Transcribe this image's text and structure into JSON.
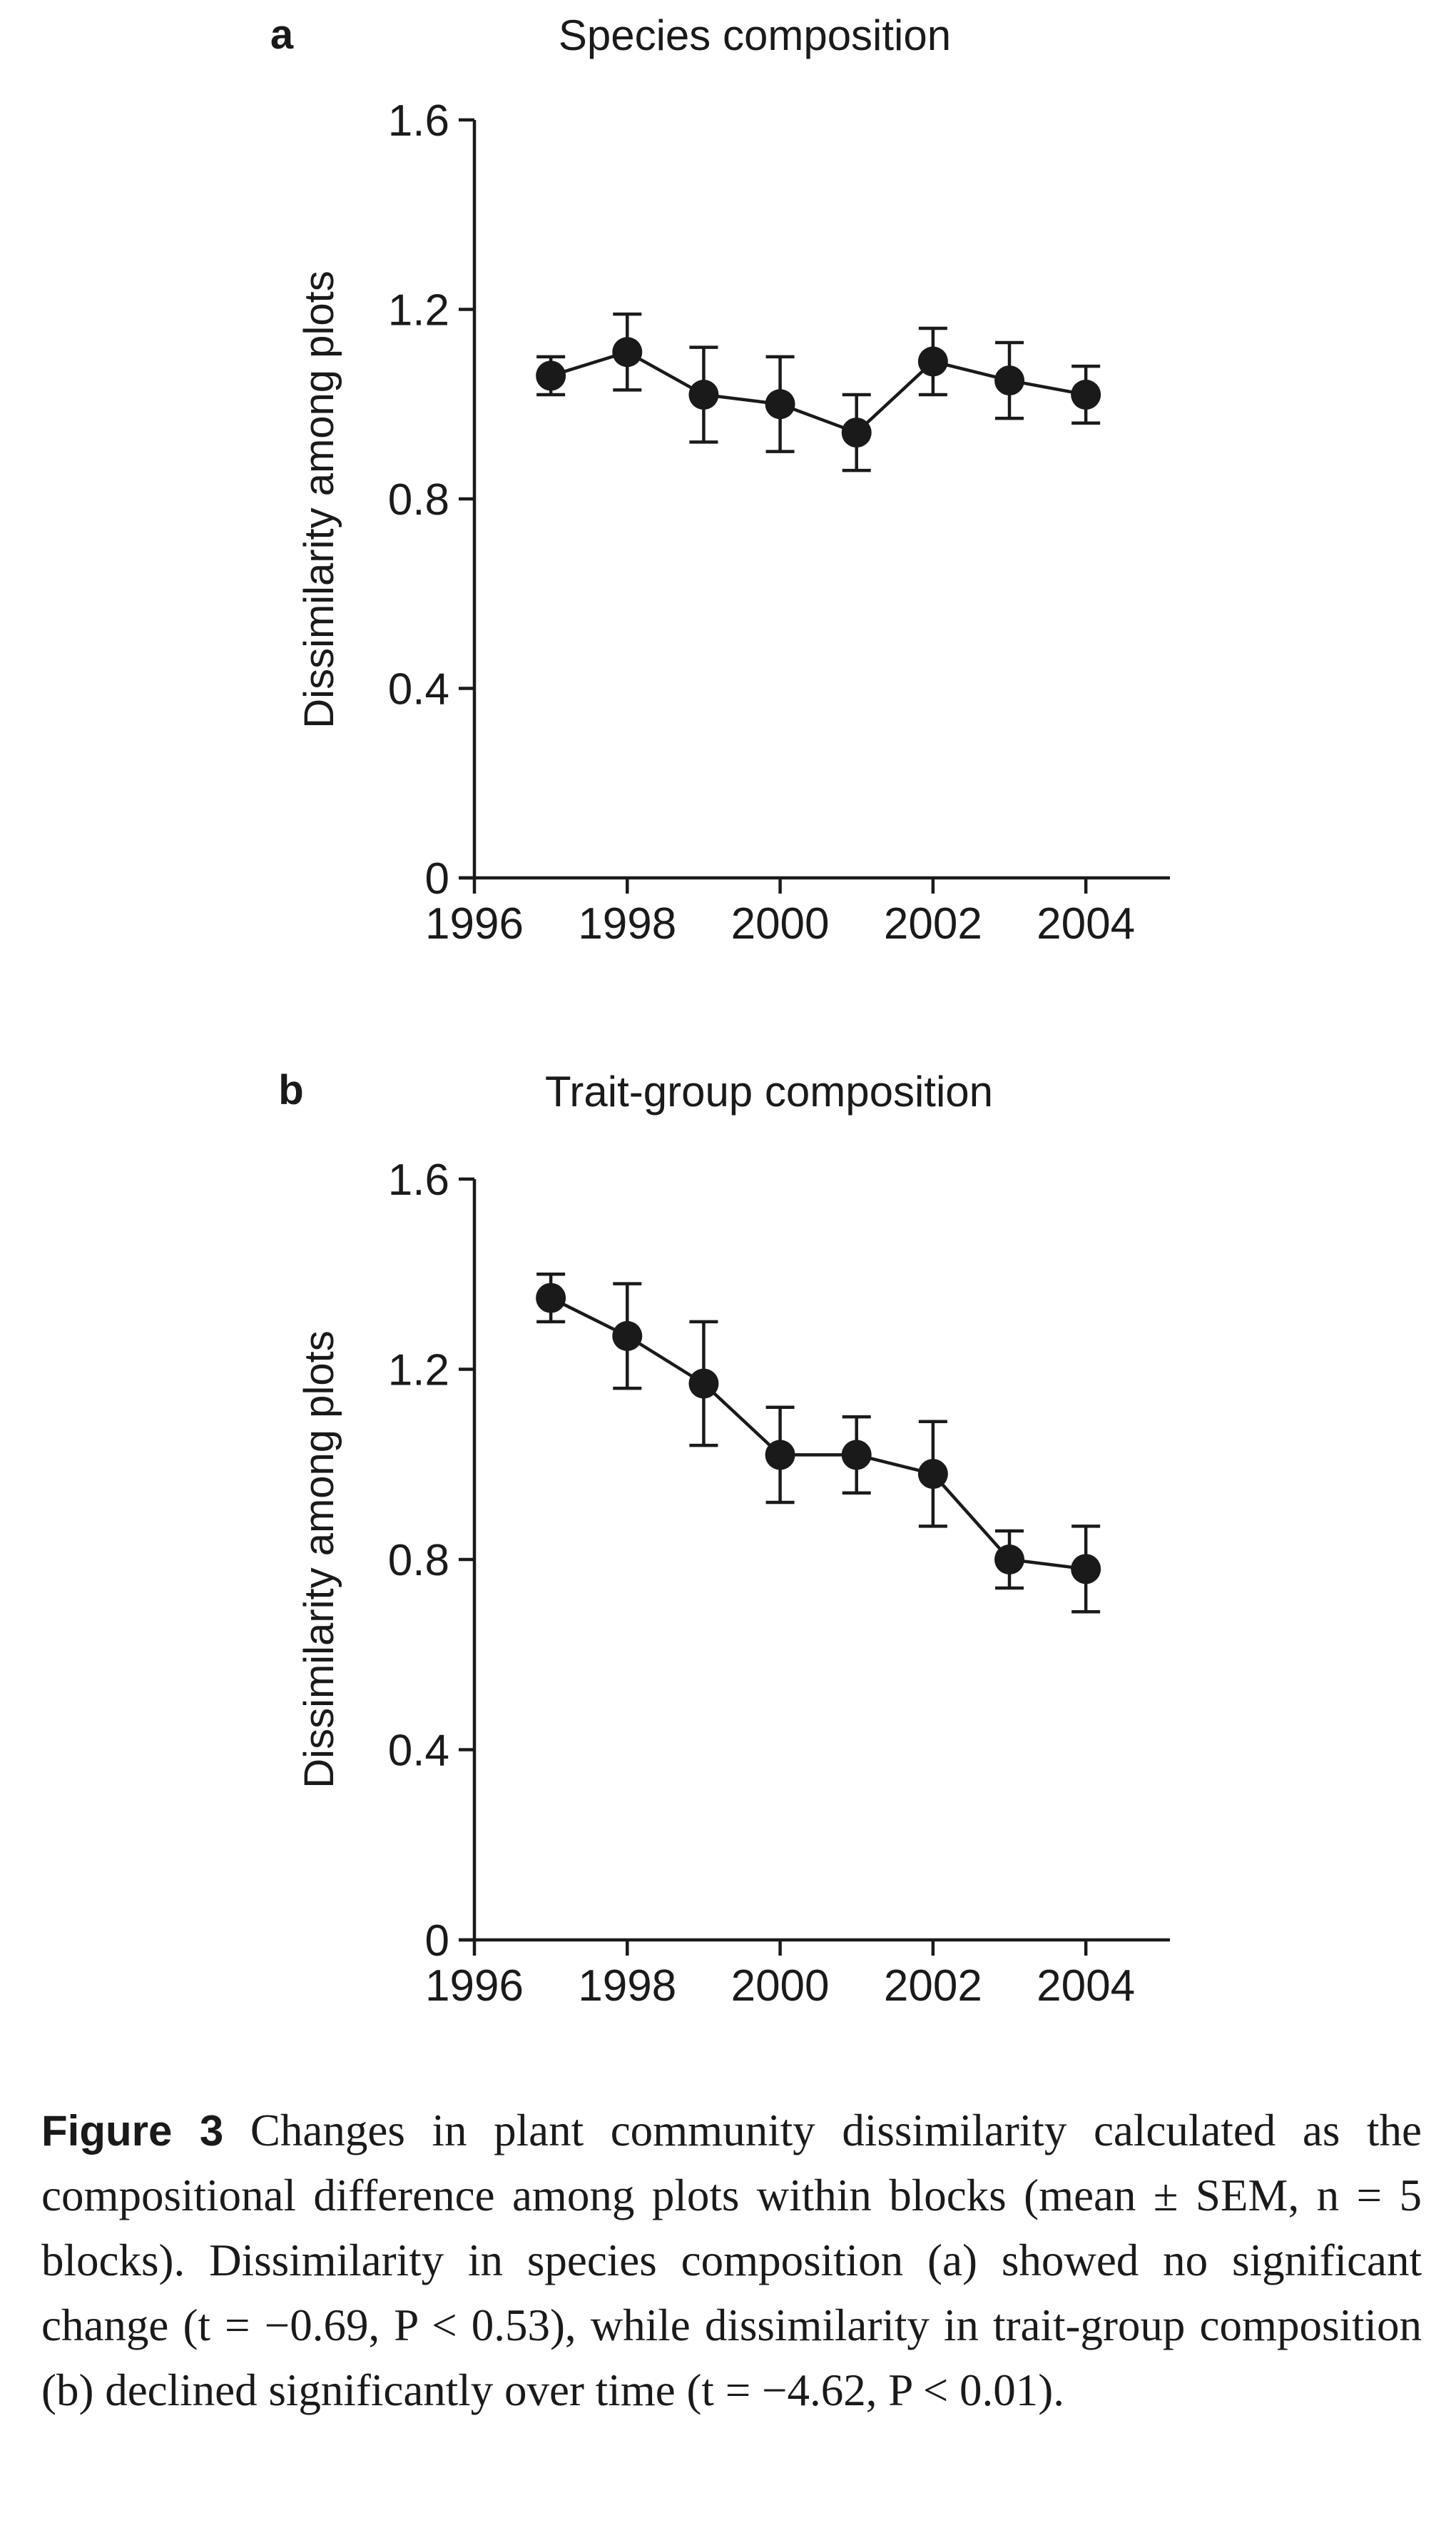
{
  "chart_data": [
    {
      "type": "line",
      "panel_label": "a",
      "title": "Species composition",
      "xlabel": "",
      "ylabel": "Dissimilarity among plots",
      "xlim": [
        1996,
        2005.1
      ],
      "ylim": [
        0,
        1.6
      ],
      "x_ticks": [
        1996,
        1998,
        2000,
        2002,
        2004
      ],
      "y_ticks": [
        0,
        0.4,
        0.8,
        1.2,
        1.6
      ],
      "x_tick_labels": [
        "1996",
        "1998",
        "2000",
        "2002",
        "2004"
      ],
      "y_tick_labels": [
        "0",
        "0.4",
        "0.8",
        "1.2",
        "1.6"
      ],
      "grid": false,
      "series": [
        {
          "x": [
            1997,
            1998,
            1999,
            2000,
            2001,
            2002,
            2003,
            2004
          ],
          "values": [
            1.06,
            1.11,
            1.02,
            1.0,
            0.94,
            1.09,
            1.05,
            1.02
          ],
          "error": [
            0.04,
            0.08,
            0.1,
            0.1,
            0.08,
            0.07,
            0.08,
            0.06
          ]
        }
      ]
    },
    {
      "type": "line",
      "panel_label": "b",
      "title": "Trait-group composition",
      "xlabel": "",
      "ylabel": "Dissimilarity among plots",
      "xlim": [
        1996,
        2005.1
      ],
      "ylim": [
        0,
        1.6
      ],
      "x_ticks": [
        1996,
        1998,
        2000,
        2002,
        2004
      ],
      "y_ticks": [
        0,
        0.4,
        0.8,
        1.2,
        1.6
      ],
      "x_tick_labels": [
        "1996",
        "1998",
        "2000",
        "2002",
        "2004"
      ],
      "y_tick_labels": [
        "0",
        "0.4",
        "0.8",
        "1.2",
        "1.6"
      ],
      "grid": false,
      "series": [
        {
          "x": [
            1997,
            1998,
            1999,
            2000,
            2001,
            2002,
            2003,
            2004
          ],
          "values": [
            1.35,
            1.27,
            1.17,
            1.02,
            1.02,
            0.98,
            0.8,
            0.78
          ],
          "error": [
            0.05,
            0.11,
            0.13,
            0.1,
            0.08,
            0.11,
            0.06,
            0.09
          ]
        }
      ]
    }
  ],
  "caption": {
    "label": "Figure 3",
    "text": " Changes in plant community dissimilarity calculated as the compositional difference among plots within blocks (mean ± SEM, n = 5 blocks). Dissimilarity in species composition (a) showed no significant change (t = −0.69, P < 0.53), while dissimilarity in trait-group composition (b) declined significantly over time (t = −4.62, P < 0.01)."
  },
  "colors": {
    "ink": "#1a1a1a",
    "background": "#ffffff"
  }
}
